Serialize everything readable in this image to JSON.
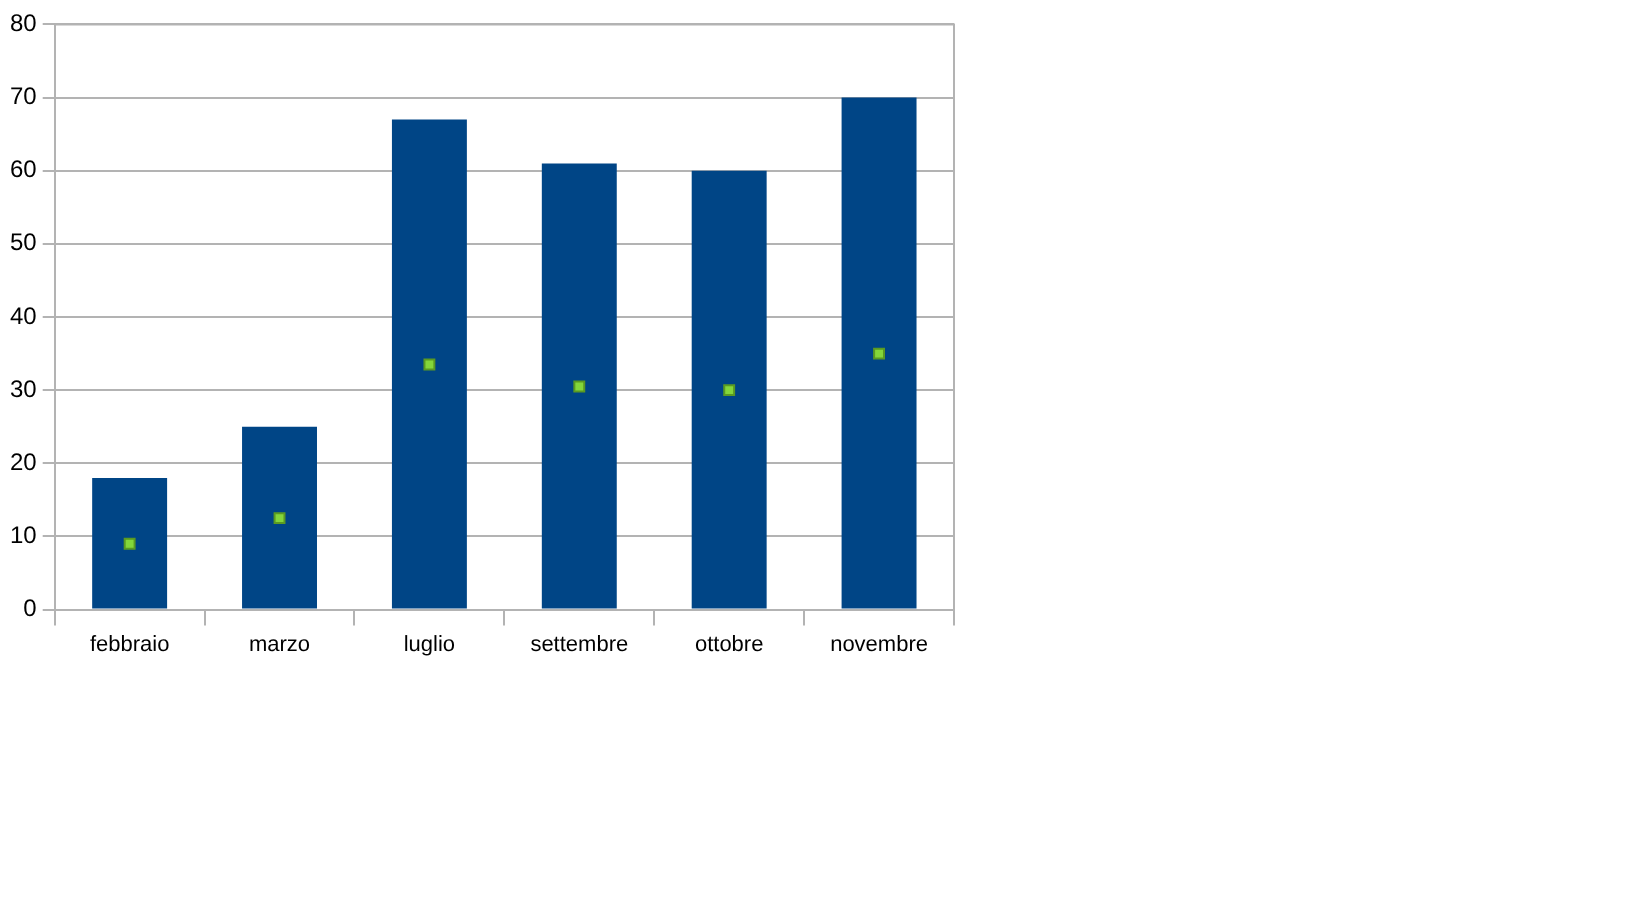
{
  "chart_data": {
    "type": "bar",
    "categories": [
      "febbraio",
      "marzo",
      "luglio",
      "settembre",
      "ottobre",
      "novembre"
    ],
    "series": [
      {
        "color": "#004586",
        "values": [
          18,
          25,
          67,
          61,
          60,
          70
        ]
      },
      {
        "type": "scatter",
        "color": "#83d63a",
        "marker": "square",
        "x": [
          "febbraio",
          "marzo",
          "luglio",
          "settembre",
          "ottobre",
          "novembre"
        ],
        "values": [
          9,
          12.5,
          33.5,
          30.5,
          30,
          35
        ]
      }
    ],
    "ylim": [
      0,
      80
    ],
    "yticks": [
      0,
      10,
      20,
      30,
      40,
      50,
      60,
      70,
      80
    ],
    "grid": "y"
  }
}
